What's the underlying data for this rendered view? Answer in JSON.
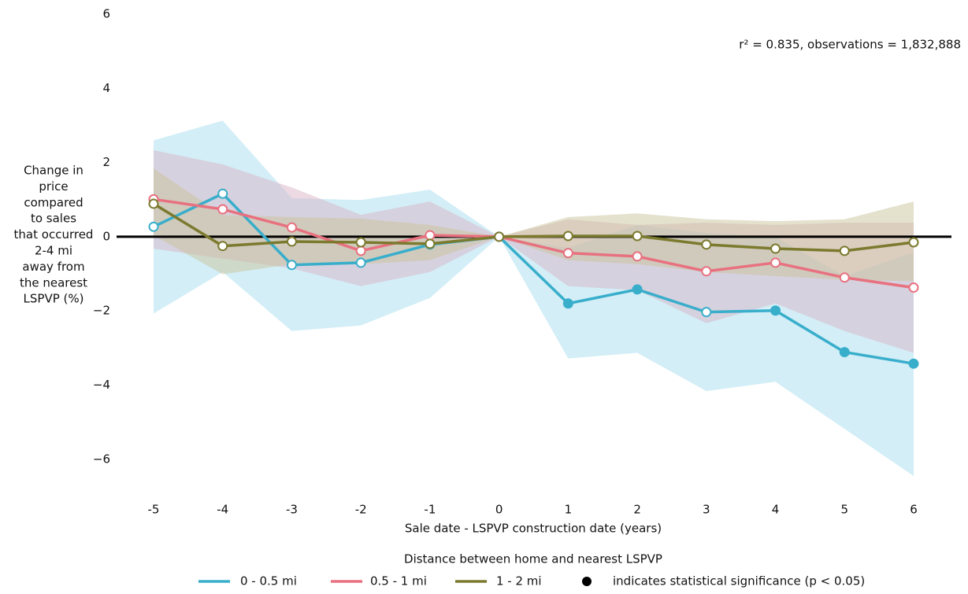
{
  "chart_data": {
    "type": "line",
    "xlabel": "Sale date - LSPVP construction date (years)",
    "ylabel_lines": [
      "Change in",
      "price",
      "compared",
      "to sales",
      "that occurred",
      "2-4 mi",
      "away from",
      "the nearest",
      "LSPVP (%)"
    ],
    "annotation": "r² = 0.835, observations = 1,832,888",
    "legend_title": "Distance between home and nearest LSPVP",
    "significance_note": "indicates statistical significance (p < 0.05)",
    "reference_line": 0,
    "x": [
      -5,
      -4,
      -3,
      -2,
      -1,
      0,
      1,
      2,
      3,
      4,
      5,
      6
    ],
    "xlim": [
      -5,
      6
    ],
    "xticks": [
      -5,
      -4,
      -3,
      -2,
      -1,
      0,
      1,
      2,
      3,
      4,
      5,
      6
    ],
    "ylim": [
      -7,
      6
    ],
    "yticks": [
      {
        "value": -6,
        "label": "−6"
      },
      {
        "value": -4,
        "label": "−4"
      },
      {
        "value": -2,
        "label": "−2"
      },
      0,
      2,
      4,
      6
    ],
    "series": [
      {
        "name": "0 - 0.5 mi",
        "color": "#38aecb",
        "band_color": "#a8ddef",
        "values": [
          0.27,
          1.16,
          -0.76,
          -0.7,
          -0.21,
          0,
          -1.8,
          -1.42,
          -2.03,
          -1.99,
          -3.11,
          -3.42
        ],
        "upper": [
          2.6,
          3.13,
          1.04,
          0.99,
          1.27,
          0,
          -0.3,
          0.32,
          0.1,
          0,
          -1.06,
          -0.42
        ],
        "lower": [
          -2.07,
          -0.95,
          -2.54,
          -2.39,
          -1.65,
          0,
          -3.28,
          -3.13,
          -4.16,
          -3.91,
          -5.18,
          -6.45
        ],
        "significant": [
          false,
          false,
          false,
          false,
          false,
          false,
          true,
          true,
          false,
          true,
          true,
          true
        ]
      },
      {
        "name": "0.5 - 1 mi",
        "color": "#e8717f",
        "band_color": "#d9b3c6",
        "values": [
          1.01,
          0.74,
          0.25,
          -0.38,
          0.04,
          0,
          -0.44,
          -0.53,
          -0.93,
          -0.7,
          -1.1,
          -1.37
        ],
        "upper": [
          2.33,
          1.95,
          1.33,
          0.59,
          0.95,
          0,
          0.47,
          0.32,
          0.38,
          0.32,
          0.38,
          0.38
        ],
        "lower": [
          -0.32,
          -0.59,
          -0.85,
          -1.33,
          -0.95,
          0,
          -1.33,
          -1.44,
          -2.33,
          -1.8,
          -2.54,
          -3.13
        ],
        "significant": [
          false,
          false,
          false,
          false,
          false,
          false,
          false,
          false,
          false,
          false,
          false,
          false
        ]
      },
      {
        "name": "1 - 2 mi",
        "color": "#7b7a2e",
        "band_color": "#c9c49c",
        "values": [
          0.89,
          -0.25,
          -0.13,
          -0.15,
          -0.19,
          0,
          0.02,
          0.02,
          -0.21,
          -0.32,
          -0.38,
          -0.15
        ],
        "upper": [
          1.84,
          0.59,
          0.53,
          0.49,
          0.32,
          0,
          0.53,
          0.63,
          0.47,
          0.42,
          0.47,
          0.95
        ],
        "lower": [
          0.04,
          -1.01,
          -0.74,
          -0.74,
          -0.63,
          0,
          -0.63,
          -0.74,
          -0.95,
          -1.06,
          -1.16,
          -1.2
        ],
        "significant": [
          false,
          false,
          false,
          false,
          false,
          false,
          false,
          false,
          false,
          false,
          false,
          false
        ]
      }
    ]
  }
}
